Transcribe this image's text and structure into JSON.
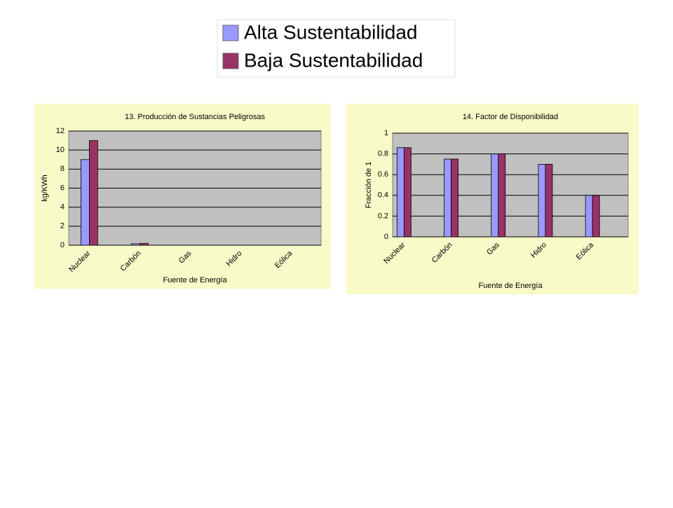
{
  "chart_data": [
    {
      "type": "bar",
      "title": "13. Producción de Sustancias Peligrosas",
      "x_label": "Fuente de Energía",
      "y_label": "kg/KWh",
      "categories": [
        "Nuclear",
        "Carbón",
        "Gas",
        "Hidro",
        "Eólica"
      ],
      "series": [
        {
          "name": "Alta Sustentabilidad",
          "color": "#9999ff",
          "values": [
            9,
            0.15,
            0,
            0,
            0
          ]
        },
        {
          "name": "Baja Sustentabilidad",
          "color": "#993366",
          "values": [
            11,
            0.2,
            0,
            0,
            0
          ]
        }
      ],
      "ylim": [
        0,
        12
      ],
      "yticks": [
        0,
        2,
        4,
        6,
        8,
        10,
        12
      ],
      "grid": true
    },
    {
      "type": "bar",
      "title": "14. Factor de Disponibilidad",
      "x_label": "Fuente de Energía",
      "y_label": "Fracción de 1",
      "categories": [
        "Nuclear",
        "Carbón",
        "Gas",
        "Hidro",
        "Eólica"
      ],
      "series": [
        {
          "color": "#9999ff",
          "values": [
            0.86,
            0.75,
            0.8,
            0.7,
            0.4
          ]
        },
        {
          "color": "#993366",
          "values": [
            0.86,
            0.75,
            0.8,
            0.7,
            0.4
          ]
        }
      ],
      "ylim": [
        0,
        1
      ],
      "yticks": [
        0,
        0.2,
        0.4,
        0.6,
        0.8,
        1
      ],
      "grid": true
    }
  ]
}
